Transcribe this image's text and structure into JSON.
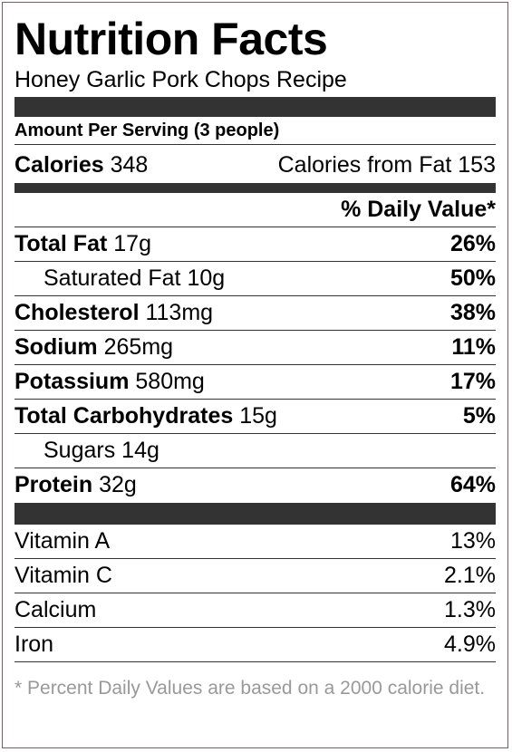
{
  "title": "Nutrition Facts",
  "subtitle": "Honey Garlic Pork Chops Recipe",
  "serving": "Amount Per Serving (3 people)",
  "calories": {
    "label": "Calories",
    "value": "348",
    "fat_label": "Calories from Fat",
    "fat_value": "153"
  },
  "dv_header": "% Daily Value*",
  "nutrients": [
    {
      "label": "Total Fat",
      "amount": "17g",
      "dv": "26%"
    },
    {
      "label": "Saturated Fat",
      "amount": "10g",
      "dv": "50%"
    },
    {
      "label": "Cholesterol",
      "amount": "113mg",
      "dv": "38%"
    },
    {
      "label": "Sodium",
      "amount": "265mg",
      "dv": "11%"
    },
    {
      "label": "Potassium",
      "amount": "580mg",
      "dv": "17%"
    },
    {
      "label": "Total Carbohydrates",
      "amount": "15g",
      "dv": "5%"
    },
    {
      "label": "Sugars",
      "amount": "14g"
    },
    {
      "label": "Protein",
      "amount": "32g",
      "dv": "64%"
    }
  ],
  "vitamins": [
    {
      "label": "Vitamin A",
      "dv": "13%"
    },
    {
      "label": "Vitamin C",
      "dv": "2.1%"
    },
    {
      "label": "Calcium",
      "dv": "1.3%"
    },
    {
      "label": "Iron",
      "dv": "4.9%"
    }
  ],
  "footnote": "* Percent Daily Values are based on a 2000 calorie diet."
}
